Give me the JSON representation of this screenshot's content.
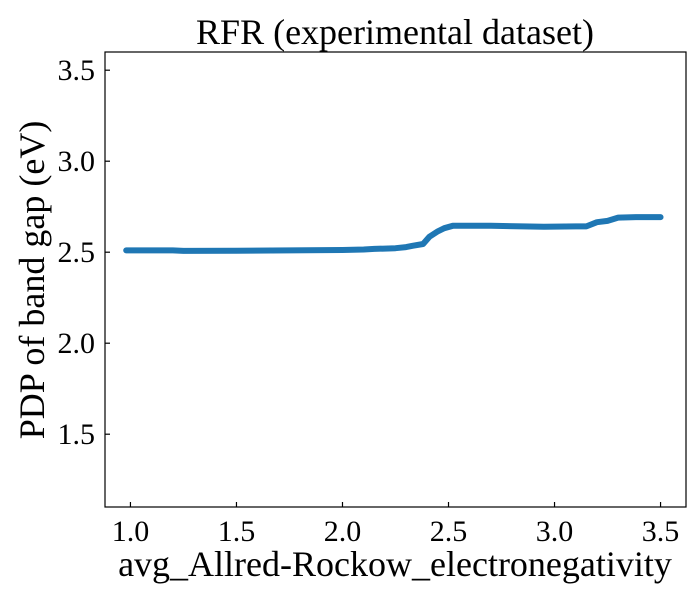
{
  "chart_data": {
    "type": "line",
    "title": "RFR (experimental dataset)",
    "xlabel": "avg_Allred-Rockow_electronegativity",
    "ylabel": "PDP of band gap (eV)",
    "xlim": [
      0.88,
      3.62
    ],
    "ylim": [
      1.1,
      3.6
    ],
    "xticks": [
      1.0,
      1.5,
      2.0,
      2.5,
      3.0,
      3.5
    ],
    "xtick_labels": [
      "1.0",
      "1.5",
      "2.0",
      "2.5",
      "3.0",
      "3.5"
    ],
    "yticks": [
      1.5,
      2.0,
      2.5,
      3.0,
      3.5
    ],
    "ytick_labels": [
      "1.5",
      "2.0",
      "2.5",
      "3.0",
      "3.5"
    ],
    "grid": false,
    "series": [
      {
        "color": "#1f77b4",
        "x": [
          0.98,
          1.2,
          1.25,
          1.5,
          1.75,
          2.0,
          2.1,
          2.15,
          2.25,
          2.3,
          2.33,
          2.38,
          2.41,
          2.45,
          2.48,
          2.52,
          2.55,
          2.7,
          2.85,
          2.95,
          3.1,
          3.15,
          3.2,
          3.25,
          3.3,
          3.4,
          3.5
        ],
        "y": [
          2.51,
          2.51,
          2.507,
          2.508,
          2.51,
          2.512,
          2.515,
          2.518,
          2.522,
          2.528,
          2.535,
          2.545,
          2.585,
          2.615,
          2.632,
          2.645,
          2.645,
          2.645,
          2.642,
          2.64,
          2.642,
          2.642,
          2.665,
          2.672,
          2.69,
          2.693,
          2.693
        ]
      }
    ]
  }
}
